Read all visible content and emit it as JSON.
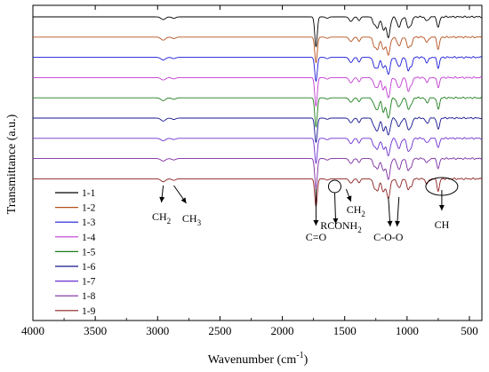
{
  "chart_data": {
    "type": "line",
    "title": "",
    "xlabel": "Wavenumber (cm-1)",
    "xlabel_main": "Wavenumber (cm",
    "xlabel_sup": "-1",
    "xlabel_close": ")",
    "ylabel": "Transmittance (a.u.)",
    "xlim": [
      4000,
      400
    ],
    "x_reversed": true,
    "x_ticks": [
      4000,
      3500,
      3000,
      2500,
      2000,
      1500,
      1000,
      500
    ],
    "y_tick_labels": false,
    "grid": false,
    "legend_position": "bottom-left",
    "series": [
      {
        "name": "1-1",
        "color": "#000000",
        "offset": 0
      },
      {
        "name": "1-2",
        "color": "#b5501d",
        "offset": 1
      },
      {
        "name": "1-3",
        "color": "#1a1ad6",
        "offset": 2
      },
      {
        "name": "1-4",
        "color": "#c03ad0",
        "offset": 3
      },
      {
        "name": "1-5",
        "color": "#1d7d1d",
        "offset": 4
      },
      {
        "name": "1-6",
        "color": "#14148f",
        "offset": 5
      },
      {
        "name": "1-7",
        "color": "#6b2fcf",
        "offset": 6
      },
      {
        "name": "1-8",
        "color": "#7a2aa0",
        "offset": 7
      },
      {
        "name": "1-9",
        "color": "#8b1e1e",
        "offset": 8
      }
    ],
    "bands": [
      {
        "center": 2955,
        "depth": 0.1,
        "width": 18
      },
      {
        "center": 2870,
        "depth": 0.05,
        "width": 15
      },
      {
        "center": 1730,
        "depth": 1.0,
        "width": 10
      },
      {
        "center": 1640,
        "depth": 0.05,
        "width": 12
      },
      {
        "center": 1450,
        "depth": 0.18,
        "width": 14
      },
      {
        "center": 1385,
        "depth": 0.16,
        "width": 10
      },
      {
        "center": 1260,
        "depth": 0.3,
        "width": 14
      },
      {
        "center": 1235,
        "depth": 0.35,
        "width": 12
      },
      {
        "center": 1190,
        "depth": 0.45,
        "width": 12
      },
      {
        "center": 1150,
        "depth": 0.7,
        "width": 14
      },
      {
        "center": 1065,
        "depth": 0.35,
        "width": 16
      },
      {
        "center": 990,
        "depth": 0.45,
        "width": 12
      },
      {
        "center": 965,
        "depth": 0.25,
        "width": 10
      },
      {
        "center": 840,
        "depth": 0.18,
        "width": 12
      },
      {
        "center": 750,
        "depth": 0.4,
        "width": 10
      }
    ],
    "annotations": [
      {
        "text": "CH",
        "sub": "2",
        "x": 2955
      },
      {
        "text": "CH",
        "sub": "3",
        "x": 2870
      },
      {
        "text": "C=O",
        "sub": "",
        "x": 1730
      },
      {
        "text": "RCONH",
        "sub": "2",
        "x": 1580
      },
      {
        "text": "CH",
        "sub": "2",
        "x": 1450
      },
      {
        "text": "C-O-O",
        "sub": "",
        "x": 1150
      },
      {
        "text": "CH",
        "sub": "",
        "x": 750
      }
    ]
  }
}
